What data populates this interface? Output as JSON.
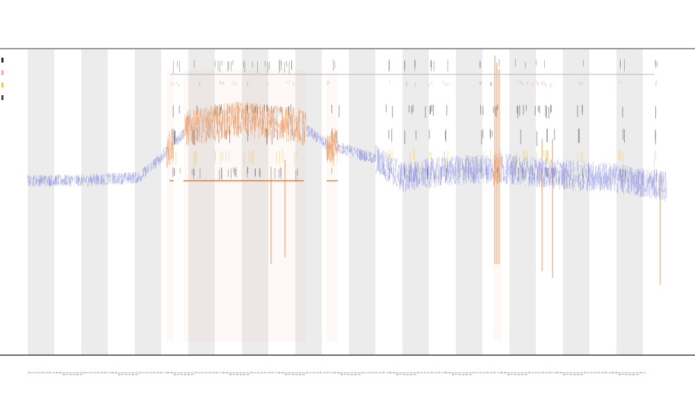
{
  "chart_data": {
    "type": "line",
    "title": "",
    "subtitle": "",
    "subtitle2": "",
    "xlabel": "",
    "ylabel": "",
    "x_range": [
      0,
      1000
    ],
    "y_range": [
      0,
      1
    ],
    "grid": false,
    "legend_placement": "top-left",
    "background_bands": {
      "first_band": 1,
      "band_count": 12,
      "band_width": 38,
      "band_period": 77
    },
    "colors": {
      "background_band": "#ececec",
      "signal_low": "#6a6fd8",
      "signal_high": "#e2874c",
      "hline": "#b5b5b5",
      "tick": "#444444",
      "pink": "#f0a8a8",
      "yellow": "#e8c85a",
      "orange_bar": "#e07a2e",
      "axis": "#333333"
    },
    "series": [
      {
        "name": "",
        "color": "#222222"
      },
      {
        "name": "",
        "color": "#f0a8a8"
      },
      {
        "name": "",
        "color": "#e8c85a"
      },
      {
        "name": "",
        "color": "#444444"
      }
    ],
    "signal_profile": [
      [
        40,
        0.57
      ],
      [
        120,
        0.57
      ],
      [
        200,
        0.58
      ],
      [
        230,
        0.64
      ],
      [
        270,
        0.74
      ],
      [
        340,
        0.77
      ],
      [
        430,
        0.75
      ],
      [
        470,
        0.69
      ],
      [
        540,
        0.64
      ],
      [
        580,
        0.58
      ],
      [
        640,
        0.6
      ],
      [
        720,
        0.61
      ],
      [
        800,
        0.59
      ],
      [
        880,
        0.58
      ],
      [
        960,
        0.55
      ]
    ],
    "highlight_regions": [
      [
        240,
        250
      ],
      [
        265,
        440
      ],
      [
        470,
        485
      ],
      [
        710,
        722
      ]
    ],
    "orange_bars": [
      [
        244,
        250
      ],
      [
        264,
        437
      ],
      [
        470,
        486
      ]
    ],
    "tick_clusters": [
      [
        245,
        260
      ],
      [
        275,
        290
      ],
      [
        305,
        340
      ],
      [
        350,
        375
      ],
      [
        380,
        430
      ],
      [
        470,
        490
      ],
      [
        555,
        565
      ],
      [
        580,
        600
      ],
      [
        610,
        625
      ],
      [
        635,
        645
      ],
      [
        690,
        700
      ],
      [
        705,
        720
      ],
      [
        740,
        760
      ],
      [
        765,
        800
      ],
      [
        830,
        840
      ],
      [
        890,
        900
      ],
      [
        940,
        948
      ]
    ],
    "x_ticks": [
      "0",
      "1",
      "2",
      "3",
      "4",
      "5",
      "6",
      "7",
      "8",
      "9",
      "10",
      "11",
      "12",
      "13",
      "14",
      "15"
    ]
  }
}
